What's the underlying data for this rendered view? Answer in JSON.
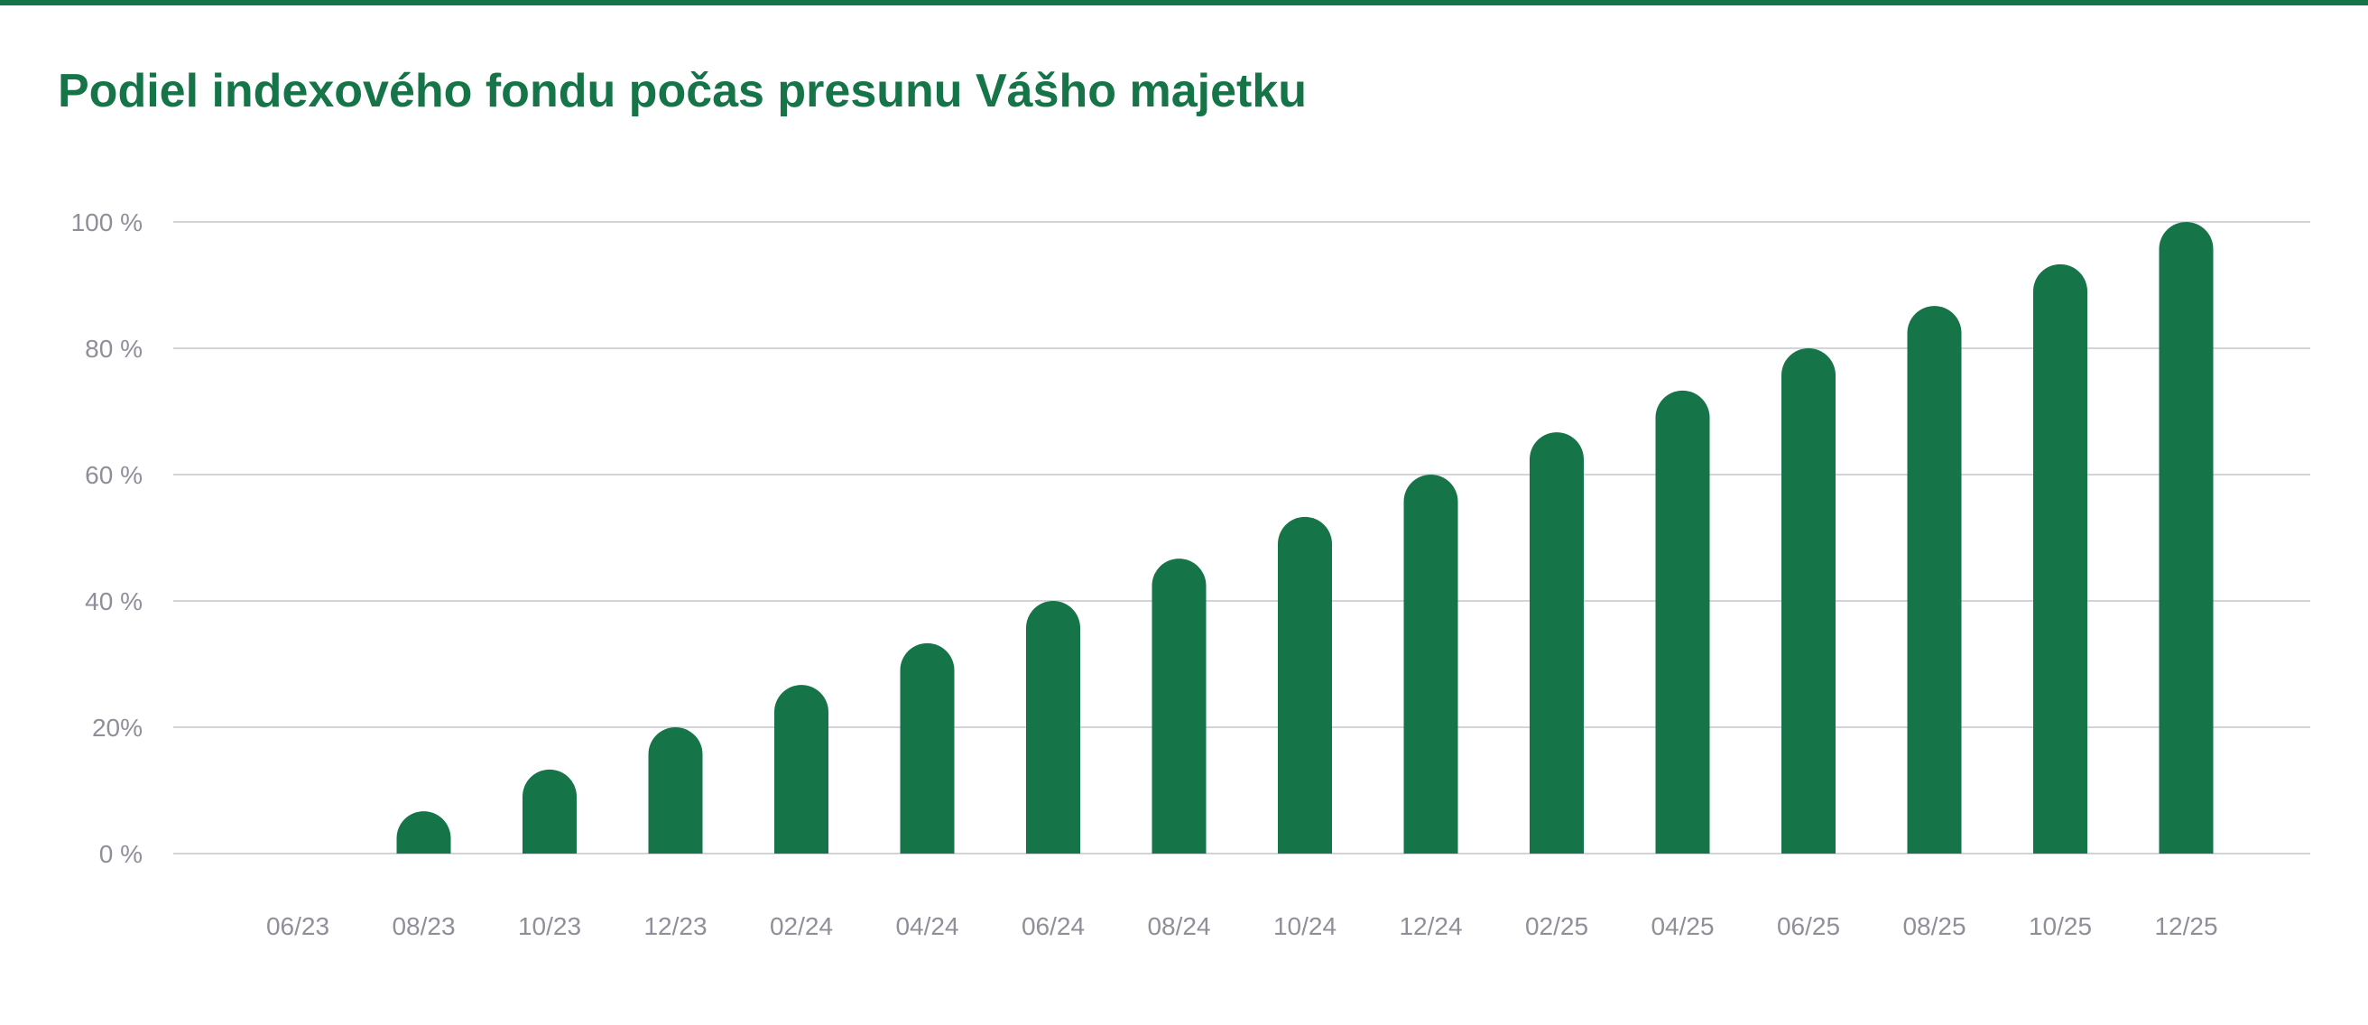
{
  "chart_data": {
    "type": "bar",
    "title": "Podiel indexového fondu počas presunu Vášho majetku",
    "xlabel": "",
    "ylabel": "",
    "categories": [
      "06/23",
      "08/23",
      "10/23",
      "12/23",
      "02/24",
      "04/24",
      "06/24",
      "08/24",
      "10/24",
      "12/24",
      "02/25",
      "04/25",
      "06/25",
      "08/25",
      "10/25",
      "12/25"
    ],
    "series": [
      {
        "values": [
          0,
          6.7,
          13.3,
          20,
          26.7,
          33.3,
          40,
          46.7,
          53.3,
          60,
          66.7,
          73.3,
          80,
          86.7,
          93.3,
          100
        ]
      }
    ],
    "ylim": [
      0,
      100
    ],
    "y_ticks": [
      {
        "value": 0,
        "label": "0 %"
      },
      {
        "value": 20,
        "label": "20%"
      },
      {
        "value": 40,
        "label": "40 %"
      },
      {
        "value": 60,
        "label": "60 %"
      },
      {
        "value": 80,
        "label": "80 %"
      },
      {
        "value": 100,
        "label": "100 %"
      }
    ],
    "grid": true,
    "legend": "none",
    "colors": {
      "bar": "#167548",
      "title": "#167548",
      "accent_rule": "#167548",
      "gridline": "#d3d3d8",
      "tick_label": "#8f8f9a",
      "background": "#ffffff"
    }
  }
}
